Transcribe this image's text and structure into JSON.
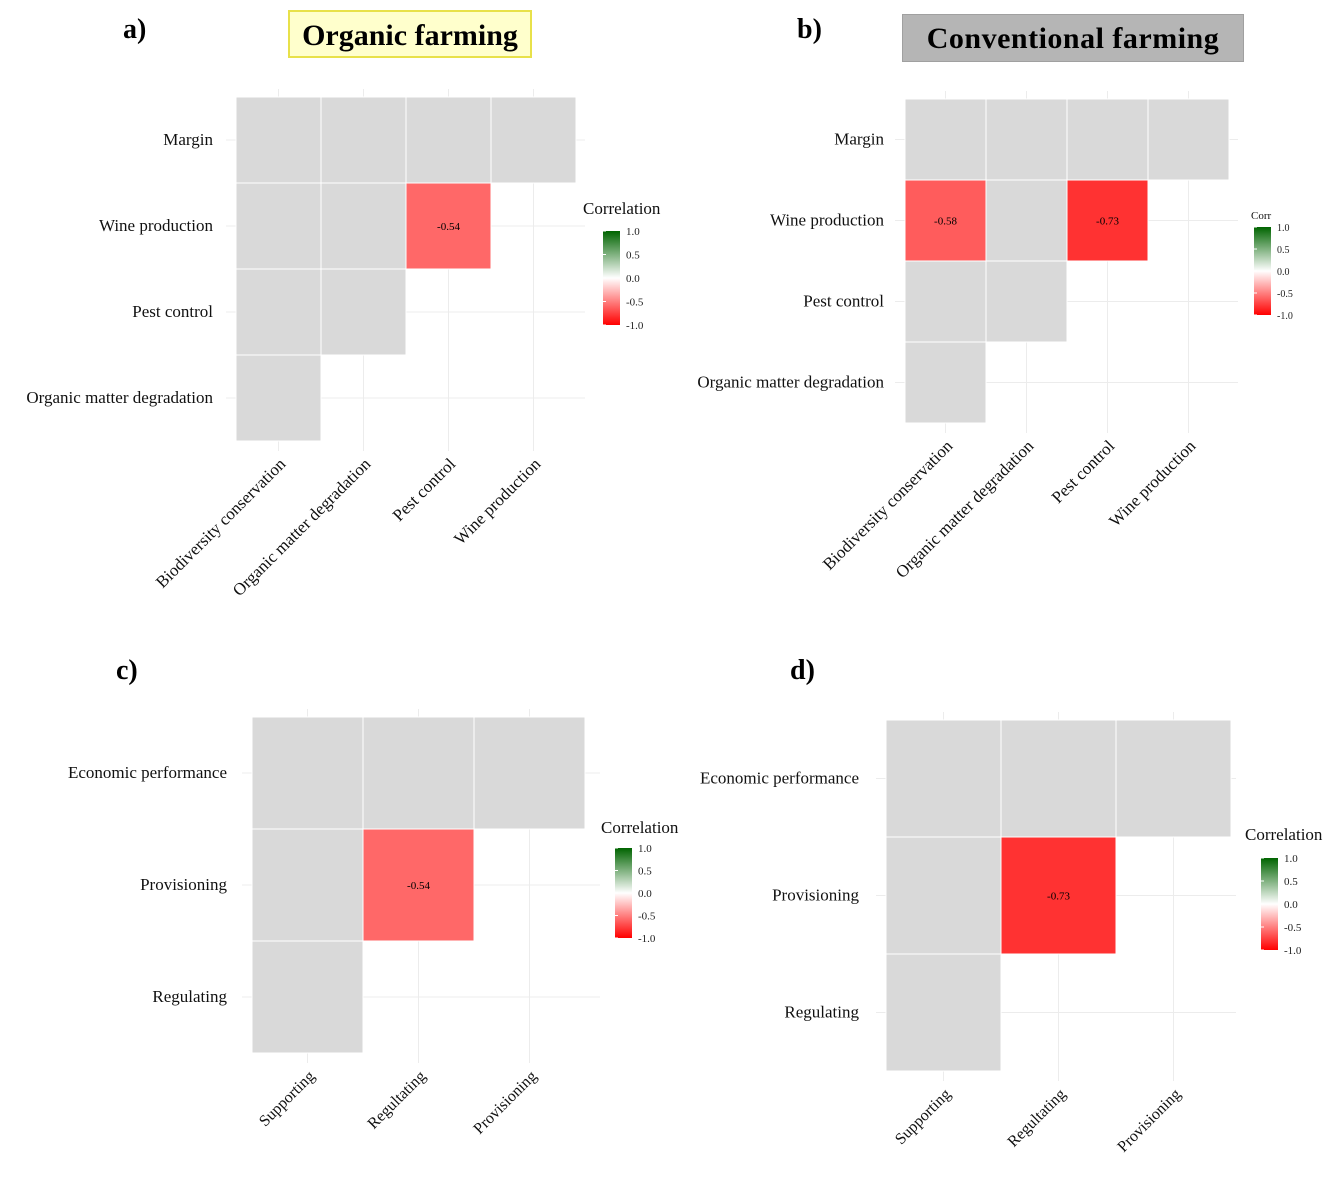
{
  "colors": {
    "neutral": "#d9d9d9",
    "grid": "#ececec",
    "negative": "#ff0000",
    "mid": "#ffffff",
    "positive": "#006400"
  },
  "panels": [
    {
      "letter": "a)",
      "banner": "Organic farming"
    },
    {
      "letter": "b)",
      "banner": "Conventional   farming"
    },
    {
      "letter": "c)",
      "banner": ""
    },
    {
      "letter": "d)",
      "banner": ""
    }
  ],
  "chart_data": [
    {
      "type": "heatmap",
      "title": "Organic farming",
      "y_categories": [
        "Margin",
        "Wine production",
        "Pest control",
        "Organic matter degradation"
      ],
      "x_categories": [
        "Biodiversity conservation",
        "Organic matter degradation",
        "Pest control",
        "Wine production"
      ],
      "row_cells": [
        4,
        3,
        2,
        1
      ],
      "cells": [
        {
          "row": "Wine production",
          "col": "Pest control",
          "value": -0.54,
          "label": "-0.54"
        }
      ],
      "legend": {
        "title": "Correlation",
        "ticks": [
          "1.0",
          "0.5",
          "0.0",
          "-0.5",
          "-1.0"
        ],
        "range": [
          -1,
          1
        ],
        "position": "right"
      }
    },
    {
      "type": "heatmap",
      "title": "Conventional   farming",
      "y_categories": [
        "Margin",
        "Wine production",
        "Pest control",
        "Organic matter degradation"
      ],
      "x_categories": [
        "Biodiversity conservation",
        "Organic matter degradation",
        "Pest control",
        "Wine production"
      ],
      "row_cells": [
        4,
        3,
        2,
        1
      ],
      "cells": [
        {
          "row": "Wine production",
          "col": "Biodiversity conservation",
          "value": -0.58,
          "label": "-0.58"
        },
        {
          "row": "Wine production",
          "col": "Pest control",
          "value": -0.73,
          "label": "-0.73"
        }
      ],
      "legend": {
        "title": "Corr",
        "ticks": [
          "1.0",
          "0.5",
          "0.0",
          "-0.5",
          "-1.0"
        ],
        "range": [
          -1,
          1
        ],
        "position": "right"
      }
    },
    {
      "type": "heatmap",
      "title": "",
      "y_categories": [
        "Economic performance",
        "Provisioning",
        "Regulating"
      ],
      "x_categories": [
        "Supporting",
        "Regultating",
        "Provisioning"
      ],
      "row_cells": [
        3,
        2,
        1
      ],
      "cells": [
        {
          "row": "Provisioning",
          "col": "Regultating",
          "value": -0.54,
          "label": "-0.54"
        }
      ],
      "legend": {
        "title": "Correlation",
        "ticks": [
          "1.0",
          "0.5",
          "0.0",
          "-0.5",
          "-1.0"
        ],
        "range": [
          -1,
          1
        ],
        "position": "right"
      }
    },
    {
      "type": "heatmap",
      "title": "",
      "y_categories": [
        "Economic performance",
        "Provisioning",
        "Regulating"
      ],
      "x_categories": [
        "Supporting",
        "Regultating",
        "Provisioning"
      ],
      "row_cells": [
        3,
        2,
        1
      ],
      "cells": [
        {
          "row": "Provisioning",
          "col": "Regultating",
          "value": -0.73,
          "label": "-0.73"
        }
      ],
      "legend": {
        "title": "Correlation",
        "ticks": [
          "1.0",
          "0.5",
          "0.0",
          "-0.5",
          "-1.0"
        ],
        "range": [
          -1,
          1
        ],
        "position": "right"
      }
    }
  ]
}
